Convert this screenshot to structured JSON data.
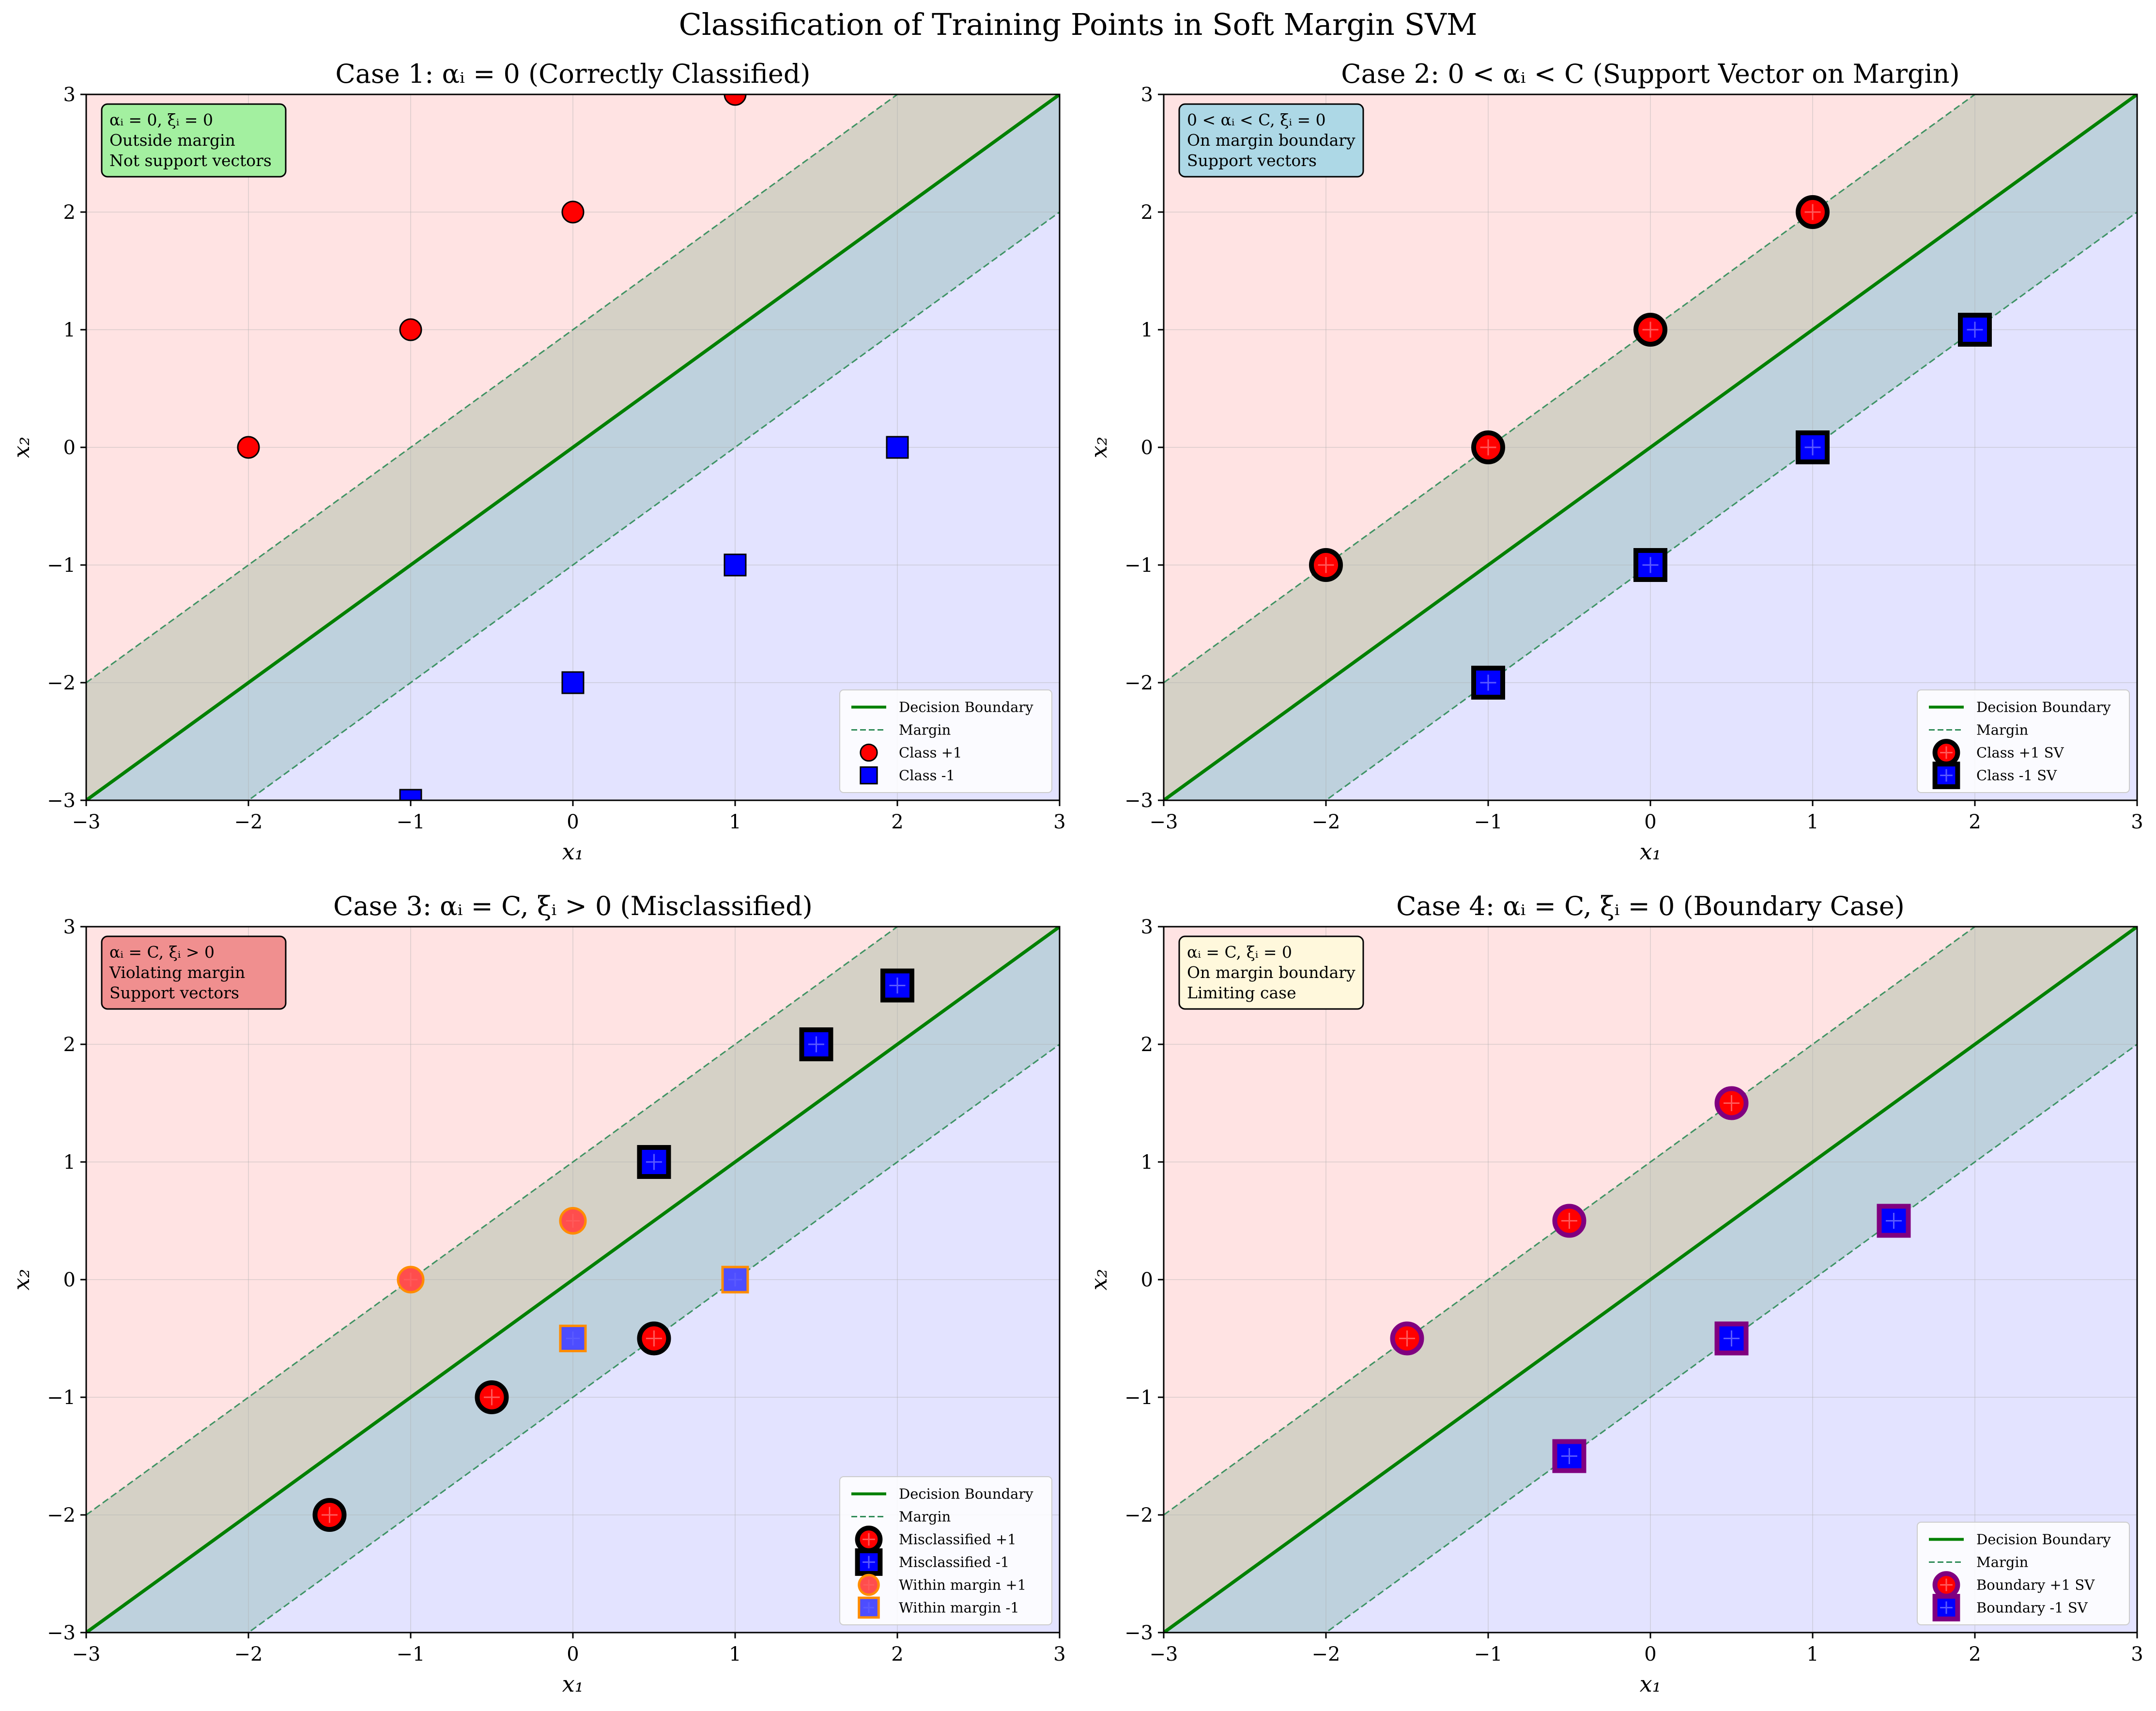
{
  "figure": {
    "suptitle": "Classification of Training Points in Soft Margin SVM"
  },
  "chart_data": [
    {
      "type": "scatter",
      "title": "Case 1: αᵢ = 0 (Correctly Classified)",
      "xlabel": "x₁",
      "ylabel": "x₂",
      "xlim": [
        -3,
        3
      ],
      "ylim": [
        -3,
        3
      ],
      "xticks": [
        "−3",
        "−2",
        "−1",
        "0",
        "1",
        "2",
        "3"
      ],
      "yticks": [
        "−3",
        "−2",
        "−1",
        "0",
        "1",
        "2",
        "3"
      ],
      "grid": true,
      "legend_position": "lower-right",
      "info_box": {
        "lines": [
          "αᵢ = 0, ξᵢ = 0",
          "Outside margin",
          "Not support vectors"
        ],
        "color": "#a3f0a0"
      },
      "lines": [
        {
          "name": "Decision Boundary",
          "kind": "decision",
          "slope": 1,
          "intercept": 0,
          "color": "#008000"
        },
        {
          "name": "Margin",
          "kind": "margin",
          "slope": 1,
          "intercept": 1,
          "color": "#2e8b57"
        },
        {
          "name": "",
          "kind": "margin",
          "slope": 1,
          "intercept": -1,
          "color": "#2e8b57"
        }
      ],
      "series": [
        {
          "name": "Class +1",
          "marker": "circle",
          "fill": "#ff0000",
          "edge": "#000000",
          "edge_weight": "thin",
          "size": "small",
          "points": [
            [
              -2,
              0
            ],
            [
              -1,
              1
            ],
            [
              0,
              2
            ],
            [
              1,
              3
            ]
          ]
        },
        {
          "name": "Class -1",
          "marker": "square",
          "fill": "#0000ff",
          "edge": "#000000",
          "edge_weight": "thin",
          "size": "small",
          "points": [
            [
              -1,
              -3
            ],
            [
              0,
              -2
            ],
            [
              1,
              -1
            ],
            [
              2,
              0
            ]
          ]
        }
      ]
    },
    {
      "type": "scatter",
      "title": "Case 2: 0 < αᵢ < C (Support Vector on Margin)",
      "xlabel": "x₁",
      "ylabel": "x₂",
      "xlim": [
        -3,
        3
      ],
      "ylim": [
        -3,
        3
      ],
      "xticks": [
        "−3",
        "−2",
        "−1",
        "0",
        "1",
        "2",
        "3"
      ],
      "yticks": [
        "−3",
        "−2",
        "−1",
        "0",
        "1",
        "2",
        "3"
      ],
      "grid": true,
      "legend_position": "lower-right",
      "info_box": {
        "lines": [
          "0 < αᵢ < C, ξᵢ = 0",
          "On margin boundary",
          "Support vectors"
        ],
        "color": "#add8e6"
      },
      "lines": [
        {
          "name": "Decision Boundary",
          "kind": "decision",
          "slope": 1,
          "intercept": 0,
          "color": "#008000"
        },
        {
          "name": "Margin",
          "kind": "margin",
          "slope": 1,
          "intercept": 1,
          "color": "#2e8b57"
        },
        {
          "name": "",
          "kind": "margin",
          "slope": 1,
          "intercept": -1,
          "color": "#2e8b57"
        }
      ],
      "series": [
        {
          "name": "Class +1 SV",
          "marker": "circle",
          "fill": "#ff0000",
          "edge": "#000000",
          "edge_weight": "thick",
          "size": "large",
          "cross": true,
          "points": [
            [
              -2,
              -1
            ],
            [
              -1,
              0
            ],
            [
              0,
              1
            ],
            [
              1,
              2
            ]
          ]
        },
        {
          "name": "Class -1 SV",
          "marker": "square",
          "fill": "#0000ff",
          "edge": "#000000",
          "edge_weight": "thick",
          "size": "large",
          "cross": true,
          "points": [
            [
              -1,
              -2
            ],
            [
              0,
              -1
            ],
            [
              1,
              0
            ],
            [
              2,
              1
            ]
          ]
        }
      ]
    },
    {
      "type": "scatter",
      "title": "Case 3: αᵢ = C, ξᵢ > 0 (Misclassified)",
      "xlabel": "x₁",
      "ylabel": "x₂",
      "xlim": [
        -3,
        3
      ],
      "ylim": [
        -3,
        3
      ],
      "xticks": [
        "−3",
        "−2",
        "−1",
        "0",
        "1",
        "2",
        "3"
      ],
      "yticks": [
        "−3",
        "−2",
        "−1",
        "0",
        "1",
        "2",
        "3"
      ],
      "grid": true,
      "legend_position": "lower-right",
      "info_box": {
        "lines": [
          "αᵢ = C, ξᵢ > 0",
          "Violating margin",
          "Support vectors"
        ],
        "color": "#f08f8f"
      },
      "lines": [
        {
          "name": "Decision Boundary",
          "kind": "decision",
          "slope": 1,
          "intercept": 0,
          "color": "#008000"
        },
        {
          "name": "Margin",
          "kind": "margin",
          "slope": 1,
          "intercept": 1,
          "color": "#2e8b57"
        },
        {
          "name": "",
          "kind": "margin",
          "slope": 1,
          "intercept": -1,
          "color": "#2e8b57"
        }
      ],
      "series": [
        {
          "name": "Misclassified +1",
          "marker": "circle",
          "fill": "#ff0000",
          "edge": "#000000",
          "edge_weight": "thick",
          "size": "large",
          "cross": true,
          "points": [
            [
              -1.5,
              -2
            ],
            [
              -0.5,
              -1
            ],
            [
              0.5,
              -0.5
            ]
          ]
        },
        {
          "name": "Misclassified -1",
          "marker": "square",
          "fill": "#0000ff",
          "edge": "#000000",
          "edge_weight": "thick",
          "size": "large",
          "cross": true,
          "points": [
            [
              0.5,
              1
            ],
            [
              1.5,
              2
            ],
            [
              2,
              2.5
            ]
          ]
        },
        {
          "name": "Within margin +1",
          "marker": "circle",
          "fill": "#ff4d4d",
          "edge": "#ff8c00",
          "edge_weight": "medium",
          "size": "medium",
          "cross": true,
          "points": [
            [
              -1,
              0
            ],
            [
              0,
              0.5
            ]
          ]
        },
        {
          "name": "Within margin -1",
          "marker": "square",
          "fill": "#4d4dff",
          "edge": "#ff8c00",
          "edge_weight": "medium",
          "size": "medium",
          "cross": true,
          "points": [
            [
              0,
              -0.5
            ],
            [
              1,
              0
            ]
          ]
        }
      ]
    },
    {
      "type": "scatter",
      "title": "Case 4: αᵢ = C, ξᵢ = 0 (Boundary Case)",
      "xlabel": "x₁",
      "ylabel": "x₂",
      "xlim": [
        -3,
        3
      ],
      "ylim": [
        -3,
        3
      ],
      "xticks": [
        "−3",
        "−2",
        "−1",
        "0",
        "1",
        "2",
        "3"
      ],
      "yticks": [
        "−3",
        "−2",
        "−1",
        "0",
        "1",
        "2",
        "3"
      ],
      "grid": true,
      "legend_position": "lower-right",
      "info_box": {
        "lines": [
          "αᵢ = C, ξᵢ = 0",
          "On margin boundary",
          "Limiting case"
        ],
        "color": "#fff8dc"
      },
      "lines": [
        {
          "name": "Decision Boundary",
          "kind": "decision",
          "slope": 1,
          "intercept": 0,
          "color": "#008000"
        },
        {
          "name": "Margin",
          "kind": "margin",
          "slope": 1,
          "intercept": 1,
          "color": "#2e8b57"
        },
        {
          "name": "",
          "kind": "margin",
          "slope": 1,
          "intercept": -1,
          "color": "#2e8b57"
        }
      ],
      "series": [
        {
          "name": "Boundary +1 SV",
          "marker": "circle",
          "fill": "#ff0000",
          "edge": "#800080",
          "edge_weight": "thick",
          "size": "large",
          "cross": true,
          "points": [
            [
              -1.5,
              -0.5
            ],
            [
              -0.5,
              0.5
            ],
            [
              0.5,
              1.5
            ]
          ]
        },
        {
          "name": "Boundary -1 SV",
          "marker": "square",
          "fill": "#0000ff",
          "edge": "#800080",
          "edge_weight": "thick",
          "size": "large",
          "cross": true,
          "points": [
            [
              -0.5,
              -1.5
            ],
            [
              0.5,
              -0.5
            ],
            [
              1.5,
              0.5
            ]
          ]
        }
      ]
    }
  ]
}
